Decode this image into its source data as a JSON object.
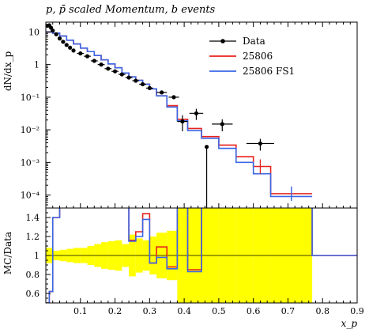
{
  "colors": {
    "data": "#000000",
    "mc1": "#e8221c",
    "mc2": "#3a66e6",
    "band": "#ffff00"
  },
  "chart_data": {
    "type": "line",
    "title": "p, p̄ scaled Momentum, b events",
    "xlabel": "x_p",
    "ylabel_top": "dN/dx_p",
    "ylabel_bottom": "MC/Data",
    "xlim": [
      0,
      0.9
    ],
    "xticks": [
      "0.1",
      "0.2",
      "0.3",
      "0.4",
      "0.5",
      "0.6",
      "0.7",
      "0.8",
      "0.9"
    ],
    "top_panel": {
      "yscale": "log",
      "ylim": [
        4e-05,
        20
      ],
      "yticks": [
        "10",
        "1",
        "10⁻¹",
        "10⁻²",
        "10⁻³",
        "10⁻⁴"
      ]
    },
    "ratio_panel": {
      "ylim": [
        0.5,
        1.5
      ],
      "yticks": [
        "1.4",
        "1.2",
        "1",
        "0.8",
        "0.6"
      ]
    },
    "legend": {
      "placement": "top-right",
      "entries": [
        "Data",
        "25806",
        "25806 FS1"
      ]
    },
    "data_points": {
      "x": [
        0.005,
        0.01,
        0.015,
        0.02,
        0.03,
        0.04,
        0.05,
        0.06,
        0.07,
        0.08,
        0.1,
        0.12,
        0.14,
        0.16,
        0.18,
        0.2,
        0.22,
        0.24,
        0.26,
        0.28,
        0.3,
        0.335,
        0.37,
        0.395,
        0.435,
        0.465,
        0.51,
        0.62
      ],
      "xerr": [
        0.004,
        0.004,
        0.004,
        0.005,
        0.005,
        0.005,
        0.005,
        0.005,
        0.005,
        0.005,
        0.01,
        0.01,
        0.01,
        0.01,
        0.01,
        0.01,
        0.01,
        0.01,
        0.01,
        0.01,
        0.01,
        0.015,
        0.015,
        0.015,
        0.02,
        0.0,
        0.03,
        0.04
      ],
      "y": [
        15.5,
        16.0,
        13.5,
        11.0,
        8.5,
        6.3,
        5.0,
        4.0,
        3.3,
        2.7,
        2.2,
        1.8,
        1.3,
        1.0,
        0.75,
        0.62,
        0.5,
        0.4,
        0.32,
        0.25,
        0.19,
        0.14,
        0.1,
        0.018,
        0.032,
        0.003,
        0.015,
        0.0038
      ],
      "yerr_lo": [
        0,
        0,
        0,
        0,
        0,
        0,
        0,
        0,
        0,
        0,
        0,
        0,
        0,
        0,
        0,
        0,
        0,
        0,
        0,
        0,
        0,
        0,
        0,
        0.009,
        0.012,
        0.00299,
        0.006,
        0.0015
      ],
      "yerr_hi": [
        0,
        0,
        0,
        0,
        0,
        0,
        0,
        0,
        0,
        0,
        0,
        0,
        0,
        0,
        0,
        0,
        0,
        0,
        0,
        0,
        0,
        0,
        0,
        0.01,
        0.012,
        0.0,
        0.006,
        0.0015
      ]
    },
    "series": [
      {
        "name": "25806",
        "edges": [
          0.0,
          0.02,
          0.04,
          0.06,
          0.08,
          0.1,
          0.12,
          0.14,
          0.16,
          0.18,
          0.2,
          0.22,
          0.24,
          0.26,
          0.28,
          0.3,
          0.32,
          0.35,
          0.38,
          0.41,
          0.45,
          0.5,
          0.55,
          0.6,
          0.65,
          0.77
        ],
        "values": [
          10.0,
          9.2,
          7.5,
          5.6,
          4.3,
          3.2,
          2.5,
          1.9,
          1.4,
          1.05,
          0.8,
          0.55,
          0.42,
          0.33,
          0.25,
          0.18,
          0.11,
          0.055,
          0.021,
          0.011,
          0.0062,
          0.0034,
          0.0015,
          0.00075,
          0.00011
        ],
        "ratio_edges": [
          0.0,
          0.01,
          0.02,
          0.04,
          0.06,
          0.08,
          0.1,
          0.12,
          0.14,
          0.16,
          0.18,
          0.2,
          0.22,
          0.24,
          0.26,
          0.28,
          0.3,
          0.32,
          0.35,
          0.38,
          0.41,
          0.45,
          0.5,
          0.55,
          0.6,
          0.65,
          0.77,
          0.9
        ],
        "ratio": [
          0.5,
          0.62,
          1.4,
          1.7,
          1.8,
          1.9,
          1.9,
          1.8,
          1.8,
          1.7,
          1.7,
          1.65,
          1.6,
          1.16,
          1.25,
          1.44,
          0.92,
          1.09,
          0.88,
          3.0,
          0.85,
          3.0,
          3.0,
          3.0,
          3.0,
          3.0,
          1.0
        ]
      },
      {
        "name": "25806 FS1",
        "edges": [
          0.0,
          0.02,
          0.04,
          0.06,
          0.08,
          0.1,
          0.12,
          0.14,
          0.16,
          0.18,
          0.2,
          0.22,
          0.24,
          0.26,
          0.28,
          0.3,
          0.32,
          0.35,
          0.38,
          0.41,
          0.45,
          0.5,
          0.55,
          0.6,
          0.65,
          0.77
        ],
        "values": [
          10.0,
          9.2,
          7.5,
          5.6,
          4.3,
          3.2,
          2.5,
          1.9,
          1.4,
          1.05,
          0.8,
          0.55,
          0.42,
          0.33,
          0.25,
          0.18,
          0.11,
          0.05,
          0.019,
          0.0095,
          0.0055,
          0.0027,
          0.001,
          0.00045,
          9e-05
        ],
        "ratio_edges": [
          0.0,
          0.01,
          0.02,
          0.04,
          0.06,
          0.08,
          0.1,
          0.12,
          0.14,
          0.16,
          0.18,
          0.2,
          0.22,
          0.24,
          0.26,
          0.28,
          0.3,
          0.32,
          0.35,
          0.38,
          0.41,
          0.45,
          0.5,
          0.55,
          0.6,
          0.65,
          0.77,
          0.9
        ],
        "ratio": [
          0.5,
          0.62,
          1.4,
          1.7,
          1.8,
          1.9,
          1.9,
          1.8,
          1.8,
          1.7,
          1.7,
          1.65,
          1.6,
          1.15,
          1.2,
          1.38,
          0.92,
          0.98,
          0.86,
          3.0,
          0.83,
          3.0,
          3.0,
          3.0,
          3.0,
          3.0,
          1.0
        ]
      }
    ],
    "data_uncertainty_band": {
      "edges": [
        0.0,
        0.02,
        0.04,
        0.06,
        0.08,
        0.1,
        0.12,
        0.14,
        0.16,
        0.18,
        0.2,
        0.22,
        0.24,
        0.26,
        0.28,
        0.3,
        0.32,
        0.35,
        0.38,
        0.41,
        0.45,
        0.5,
        0.55,
        0.6,
        0.65,
        0.77
      ],
      "lo": [
        0.92,
        0.95,
        0.94,
        0.93,
        0.92,
        0.92,
        0.9,
        0.88,
        0.86,
        0.85,
        0.84,
        0.88,
        0.78,
        0.82,
        0.84,
        0.8,
        0.76,
        0.74,
        0.3,
        0.3,
        0.3,
        0.3,
        0.3,
        0.3,
        0.3
      ],
      "hi": [
        1.08,
        1.05,
        1.06,
        1.07,
        1.08,
        1.08,
        1.1,
        1.12,
        1.14,
        1.15,
        1.16,
        1.12,
        1.22,
        1.18,
        1.16,
        1.2,
        1.24,
        1.26,
        1.7,
        1.7,
        1.7,
        1.7,
        1.7,
        1.7,
        1.7
      ]
    }
  }
}
